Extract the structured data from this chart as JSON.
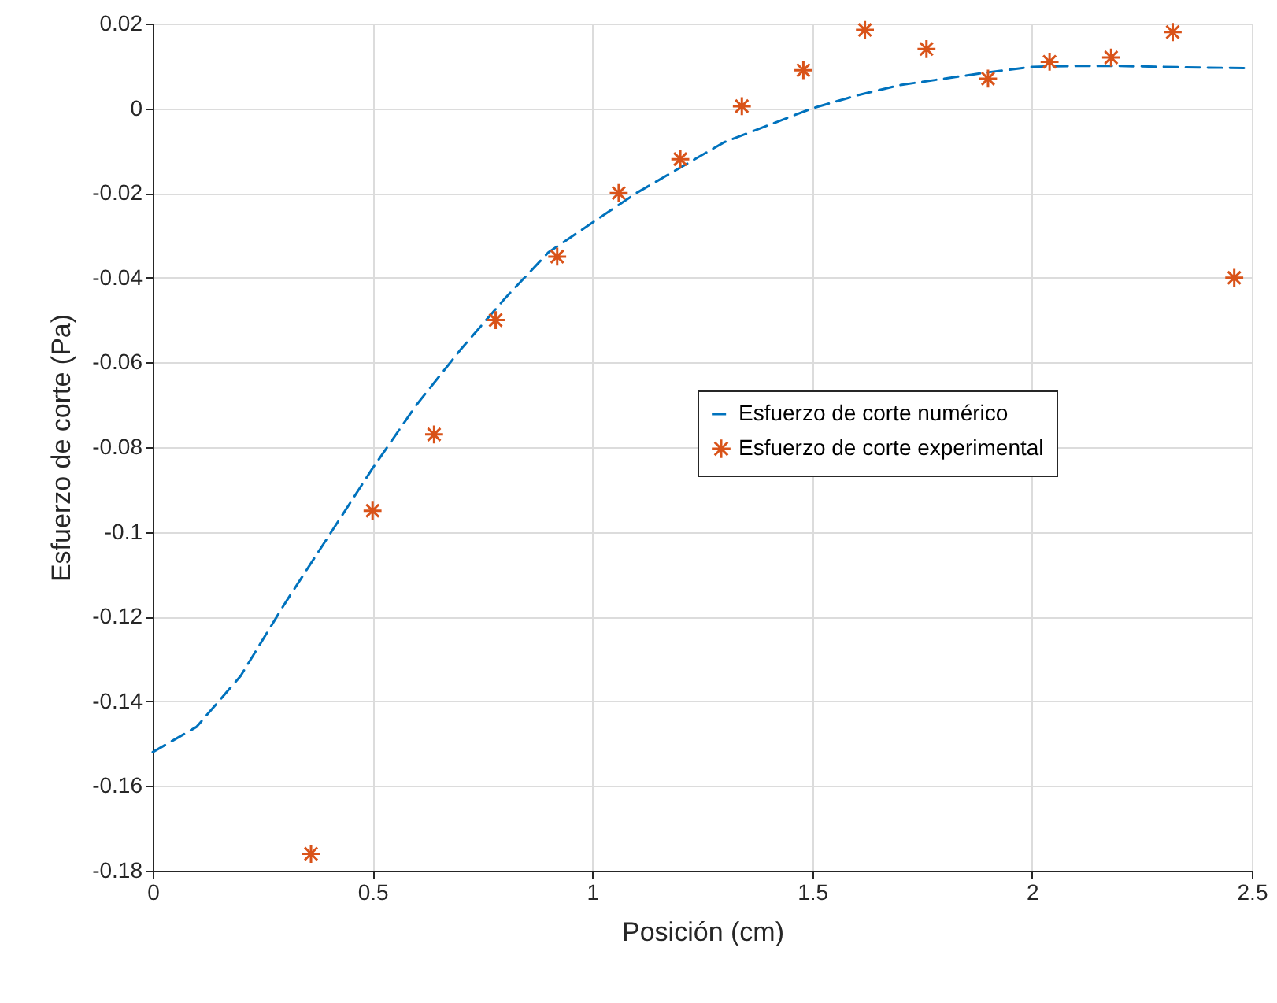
{
  "chart_data": {
    "type": "line",
    "xlabel": "Posición (cm)",
    "ylabel": "Esfuerzo de corte (Pa)",
    "xlim": [
      0,
      2.5
    ],
    "ylim": [
      -0.18,
      0.02
    ],
    "xticks": [
      0,
      0.5,
      1,
      1.5,
      2,
      2.5
    ],
    "yticks": [
      -0.18,
      -0.16,
      -0.14,
      -0.12,
      -0.1,
      -0.08,
      -0.06,
      -0.04,
      -0.02,
      0,
      0.02
    ],
    "grid": true,
    "legend": "right",
    "series": [
      {
        "name": "Esfuerzo de corte numérico",
        "line_style": "dashed",
        "color": "#0072bd",
        "x": [
          0,
          0.1,
          0.2,
          0.3,
          0.4,
          0.5,
          0.6,
          0.7,
          0.8,
          0.9,
          1.0,
          1.1,
          1.2,
          1.3,
          1.4,
          1.5,
          1.6,
          1.7,
          1.8,
          1.9,
          2.0,
          2.1,
          2.2,
          2.3,
          2.4,
          2.5
        ],
        "values": [
          -0.152,
          -0.146,
          -0.134,
          -0.117,
          -0.101,
          -0.085,
          -0.07,
          -0.057,
          -0.045,
          -0.034,
          -0.027,
          -0.02,
          -0.014,
          -0.008,
          -0.004,
          0.0,
          0.003,
          0.0055,
          0.007,
          0.0085,
          0.0098,
          0.01,
          0.01,
          0.0098,
          0.0096,
          0.0095
        ]
      },
      {
        "name": "Esfuerzo de corte experimental",
        "type": "scatter",
        "marker": "cross",
        "color": "#d95319",
        "x": [
          0.36,
          0.5,
          0.64,
          0.78,
          0.92,
          1.06,
          1.2,
          1.34,
          1.48,
          1.62,
          1.76,
          1.9,
          2.04,
          2.18,
          2.32,
          2.46
        ],
        "values": [
          -0.176,
          -0.095,
          -0.077,
          -0.05,
          -0.035,
          -0.02,
          -0.012,
          0.0005,
          0.009,
          0.0185,
          0.014,
          0.007,
          0.011,
          0.012,
          0.018,
          -0.04
        ]
      }
    ]
  }
}
